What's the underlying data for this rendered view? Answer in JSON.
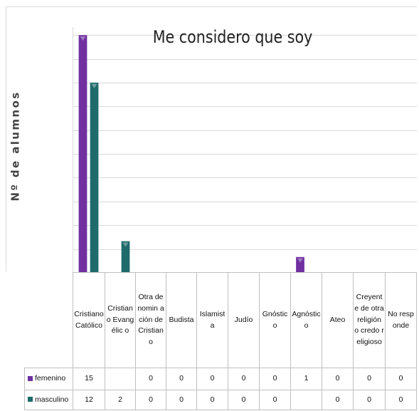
{
  "chart_data": {
    "type": "bar",
    "title": "Me considero que soy",
    "ylabel": "Nº de alumnos",
    "xlabel": "",
    "ylim": [
      0,
      15.5
    ],
    "grid": true,
    "legend": "data table",
    "categories": [
      "Cristiano Católico",
      "Cristiano Evangélico",
      "Otra denominación de Cristiano",
      "Budista",
      "Islamista",
      "Judío",
      "Gnóstico",
      "Agnóstico",
      "Ateo",
      "Creyente de otra religión o credo religioso",
      "No responde"
    ],
    "category_labels_shown": [
      "Cristiano Católico",
      "Cristiano Evangélic o",
      "Otra denomin ación de Cristiano",
      "Budista",
      "Islamista",
      "Judío",
      "Gnóstico",
      "Agnóstic o",
      "Ateo",
      "Creyente de otra religión o credo religioso",
      "No responde"
    ],
    "series": [
      {
        "name": "femenino",
        "color": "#7030a0",
        "values": [
          15,
          null,
          0,
          0,
          0,
          0,
          0,
          1,
          0,
          0,
          0
        ],
        "table_text": [
          "15",
          "",
          "0",
          "0",
          "0",
          "0",
          "0",
          "1",
          "0",
          "0",
          "0"
        ]
      },
      {
        "name": "masculino",
        "label_shown": "masculino",
        "color": "#1f6b6b",
        "values": [
          12,
          2,
          0,
          0,
          0,
          0,
          0,
          null,
          0,
          0,
          0
        ],
        "table_text": [
          "12",
          "2",
          "0",
          "0",
          "0",
          "0",
          "0",
          "",
          "0",
          "0",
          "0"
        ]
      }
    ]
  }
}
